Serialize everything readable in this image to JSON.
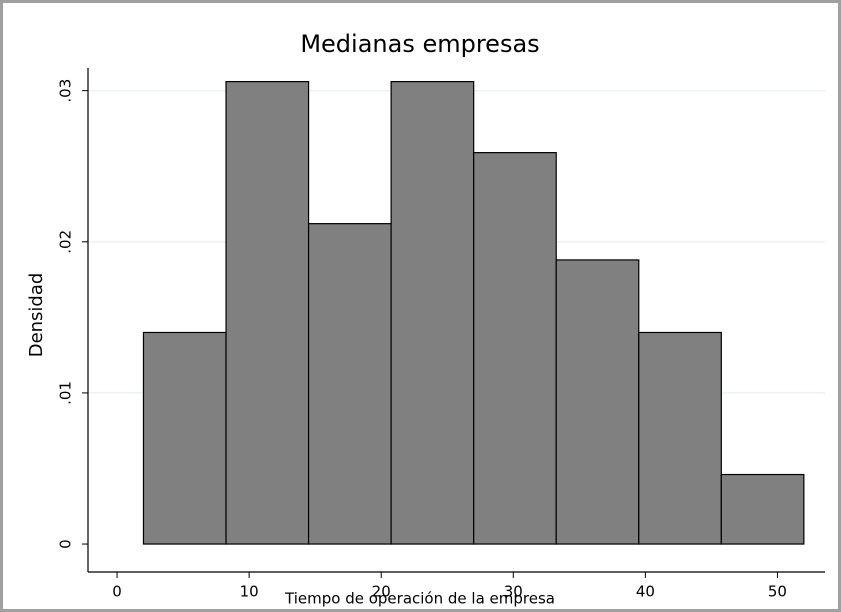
{
  "chart_data": {
    "type": "histogram",
    "title": "Medianas empresas",
    "x_label": "Tiempo de operación de la empresa",
    "y_label": "Densidad",
    "bins": [
      2,
      8.25,
      14.5,
      20.75,
      27,
      33.25,
      39.5,
      45.75,
      52
    ],
    "values": [
      0.014,
      0.0306,
      0.0212,
      0.0306,
      0.0259,
      0.0188,
      0.014,
      0.0046
    ],
    "color": "#808080",
    "xlim": [
      -2.2,
      53.6
    ],
    "ylim": [
      -0.00185,
      0.0315
    ],
    "xticks": [
      0,
      10,
      20,
      30,
      40,
      50
    ],
    "yticks": [
      0,
      {
        "value": 0.01,
        "label": ".01"
      },
      {
        "value": 0.02,
        "label": ".02"
      },
      {
        "value": 0.03,
        "label": ".03"
      }
    ],
    "grid": true
  }
}
